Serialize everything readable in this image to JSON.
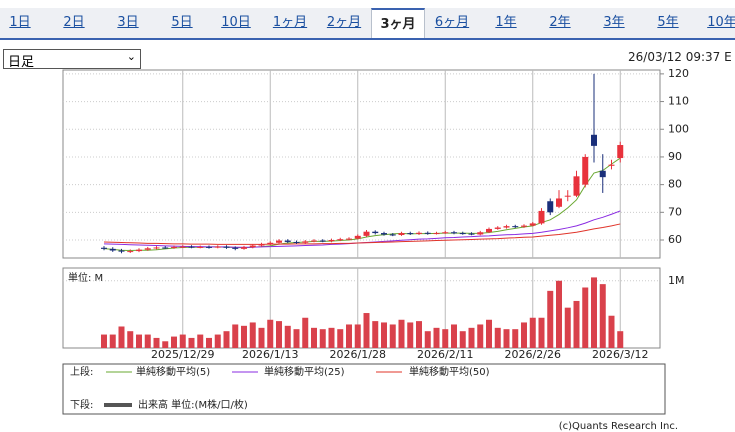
{
  "tabs": [
    "1日",
    "2日",
    "3日",
    "5日",
    "10日",
    "1ヶ月",
    "2ヶ月",
    "3ヶ月",
    "6ヶ月",
    "1年",
    "2年",
    "3年",
    "5年",
    "10年"
  ],
  "selected_tab": 7,
  "period_select": "日足",
  "timestamp": "26/03/12 09:37 E",
  "chart_data": [
    {
      "type": "candlestick",
      "up_color": "#e8323c",
      "down_color": "#1a2f7a",
      "open": [
        57.2,
        56.8,
        56.2,
        55.8,
        56.0,
        56.5,
        57.0,
        57.3,
        57.2,
        57.5,
        57.6,
        57.4,
        57.5,
        57.3,
        57.6,
        57.2,
        56.8,
        57.4,
        58.0,
        58.5,
        59.0,
        59.8,
        59.3,
        59.0,
        59.5,
        59.8,
        59.6,
        60.0,
        60.3,
        60.5,
        61.5,
        63.0,
        62.5,
        62.0,
        61.8,
        62.5,
        62.2,
        62.6,
        62.3,
        62.5,
        62.8,
        62.5,
        62.3,
        62.0,
        62.8,
        64.0,
        64.5,
        65.0,
        64.8,
        65.2,
        66.0,
        74.0,
        72.0,
        75.8,
        76.0,
        80.0,
        98.0,
        85.0,
        86.8,
        89.6
      ],
      "high": [
        57.8,
        57.4,
        56.8,
        56.6,
        57.0,
        57.5,
        57.8,
        57.8,
        58.0,
        58.1,
        58.1,
        58.0,
        58.0,
        58.1,
        58.1,
        57.7,
        57.9,
        58.5,
        59.0,
        59.5,
        60.3,
        60.3,
        59.8,
        60.0,
        60.3,
        60.3,
        60.5,
        60.8,
        61.0,
        62.0,
        63.6,
        63.5,
        63.0,
        62.5,
        63.0,
        63.0,
        63.1,
        63.1,
        63.0,
        63.3,
        63.3,
        63.0,
        62.8,
        63.3,
        64.5,
        65.0,
        65.5,
        65.5,
        65.7,
        66.5,
        71.5,
        75.0,
        78.0,
        78.0,
        85.0,
        91.0,
        120.0,
        91.0,
        89.0,
        95.5
      ],
      "low": [
        56.3,
        55.7,
        55.2,
        55.3,
        55.6,
        56.1,
        56.6,
        56.8,
        56.8,
        57.1,
        57.0,
        57.0,
        56.9,
        57.0,
        56.8,
        56.3,
        56.5,
        57.0,
        57.6,
        58.1,
        58.7,
        58.9,
        58.6,
        58.7,
        59.2,
        59.2,
        59.2,
        59.6,
        59.9,
        60.2,
        61.1,
        62.0,
        61.6,
        61.4,
        61.5,
        61.8,
        61.8,
        61.9,
        62.0,
        62.2,
        62.1,
        61.9,
        61.7,
        61.7,
        62.5,
        63.7,
        64.1,
        64.3,
        64.4,
        64.9,
        65.5,
        69.0,
        71.5,
        74.0,
        75.5,
        79.0,
        88.0,
        77.0,
        85.5,
        88.0
      ],
      "close": [
        56.8,
        56.2,
        55.8,
        56.0,
        56.5,
        57.0,
        57.3,
        57.2,
        57.5,
        57.6,
        57.4,
        57.5,
        57.3,
        57.6,
        57.2,
        56.8,
        57.4,
        58.0,
        58.5,
        59.0,
        59.8,
        59.3,
        59.0,
        59.5,
        59.8,
        59.6,
        60.0,
        60.3,
        60.5,
        61.5,
        63.0,
        62.5,
        62.0,
        61.8,
        62.5,
        62.2,
        62.6,
        62.3,
        62.5,
        62.8,
        62.5,
        62.3,
        62.0,
        62.8,
        64.0,
        64.5,
        65.0,
        64.8,
        65.2,
        66.0,
        70.5,
        70.0,
        75.0,
        76.0,
        83.0,
        90.0,
        94.0,
        82.7,
        87.2,
        94.3
      ],
      "series": [
        {
          "name": "単純移動平均(5)",
          "color": "#6aa832",
          "values": [
            56.9,
            56.6,
            56.3,
            56.2,
            56.3,
            56.3,
            56.5,
            56.8,
            57.1,
            57.3,
            57.4,
            57.4,
            57.5,
            57.5,
            57.4,
            57.3,
            57.2,
            57.4,
            57.6,
            57.9,
            58.5,
            58.9,
            59.1,
            59.3,
            59.5,
            59.5,
            59.6,
            59.8,
            60.0,
            60.4,
            61.1,
            61.6,
            61.9,
            62.2,
            62.4,
            62.2,
            62.3,
            62.3,
            62.4,
            62.5,
            62.5,
            62.5,
            62.4,
            62.4,
            62.7,
            63.1,
            63.7,
            64.2,
            64.7,
            65.1,
            66.3,
            67.3,
            69.2,
            71.6,
            74.5,
            79.7,
            84.2,
            85.1,
            87.4,
            89.6
          ]
        },
        {
          "name": "単純移動平均(25)",
          "color": "#8a2be2",
          "values": [
            58.6,
            58.5,
            58.4,
            58.3,
            58.2,
            58.1,
            58.0,
            57.9,
            57.8,
            57.7,
            57.6,
            57.6,
            57.5,
            57.5,
            57.5,
            57.4,
            57.4,
            57.4,
            57.5,
            57.6,
            57.7,
            57.8,
            57.9,
            58.0,
            58.1,
            58.2,
            58.4,
            58.5,
            58.7,
            58.9,
            59.1,
            59.3,
            59.5,
            59.7,
            59.9,
            60.1,
            60.3,
            60.4,
            60.6,
            60.8,
            60.9,
            61.1,
            61.2,
            61.4,
            61.5,
            61.7,
            61.9,
            62.0,
            62.2,
            62.4,
            62.8,
            63.3,
            63.8,
            64.4,
            65.1,
            66.1,
            67.3,
            68.2,
            69.3,
            70.5
          ]
        },
        {
          "name": "単純移動平均(50)",
          "color": "#e0342a",
          "values": [
            59.3,
            59.2,
            59.1,
            59.0,
            58.9,
            58.8,
            58.8,
            58.7,
            58.6,
            58.6,
            58.5,
            58.5,
            58.5,
            58.4,
            58.4,
            58.4,
            58.4,
            58.4,
            58.4,
            58.5,
            58.5,
            58.5,
            58.6,
            58.6,
            58.6,
            58.7,
            58.7,
            58.8,
            58.8,
            58.9,
            59.0,
            59.1,
            59.2,
            59.3,
            59.4,
            59.5,
            59.6,
            59.7,
            59.8,
            59.9,
            60.0,
            60.1,
            60.2,
            60.3,
            60.4,
            60.5,
            60.7,
            60.8,
            61.0,
            61.1,
            61.4,
            61.7,
            62.0,
            62.4,
            62.8,
            63.4,
            64.0,
            64.5,
            65.1,
            65.8
          ]
        }
      ],
      "ylim": [
        53.5,
        121.4
      ],
      "yticks": [
        60,
        70,
        80,
        90,
        100,
        110,
        120
      ],
      "grid": true
    },
    {
      "type": "bar",
      "unit_label": "単位: M",
      "color": "#d9414b",
      "categories": [
        null,
        null,
        null,
        null,
        null,
        null,
        null,
        null,
        null,
        "2025/12/29",
        null,
        null,
        null,
        null,
        null,
        null,
        null,
        null,
        null,
        "2026/1/13",
        null,
        null,
        null,
        null,
        null,
        null,
        null,
        null,
        null,
        "2026/1/28",
        null,
        null,
        null,
        null,
        null,
        null,
        null,
        null,
        null,
        "2026/2/11",
        null,
        null,
        null,
        null,
        null,
        null,
        null,
        null,
        null,
        "2026/2/26",
        null,
        null,
        null,
        null,
        null,
        null,
        null,
        null,
        null,
        "2026/3/12"
      ],
      "series": [
        {
          "name": "出来高 単位:(M株/口/枚)",
          "color": "#555555",
          "values": [
            0.2,
            0.2,
            0.32,
            0.25,
            0.2,
            0.2,
            0.15,
            0.1,
            0.17,
            0.2,
            0.15,
            0.2,
            0.15,
            0.2,
            0.25,
            0.35,
            0.33,
            0.38,
            0.3,
            0.42,
            0.4,
            0.33,
            0.28,
            0.45,
            0.3,
            0.28,
            0.3,
            0.28,
            0.35,
            0.35,
            0.52,
            0.4,
            0.38,
            0.35,
            0.42,
            0.38,
            0.4,
            0.25,
            0.3,
            0.28,
            0.35,
            0.25,
            0.3,
            0.35,
            0.42,
            0.3,
            0.28,
            0.28,
            0.38,
            0.45,
            0.45,
            0.85,
            1.0,
            0.6,
            0.7,
            0.9,
            1.05,
            0.95,
            0.48,
            0.25
          ]
        }
      ],
      "ylim": [
        0,
        1.19
      ],
      "yticks": [
        {
          "value": 1,
          "label": "1M"
        }
      ]
    }
  ],
  "legend": {
    "upper": "上段:",
    "lower": "下段:"
  },
  "copyright": "(c)Quants Research Inc."
}
